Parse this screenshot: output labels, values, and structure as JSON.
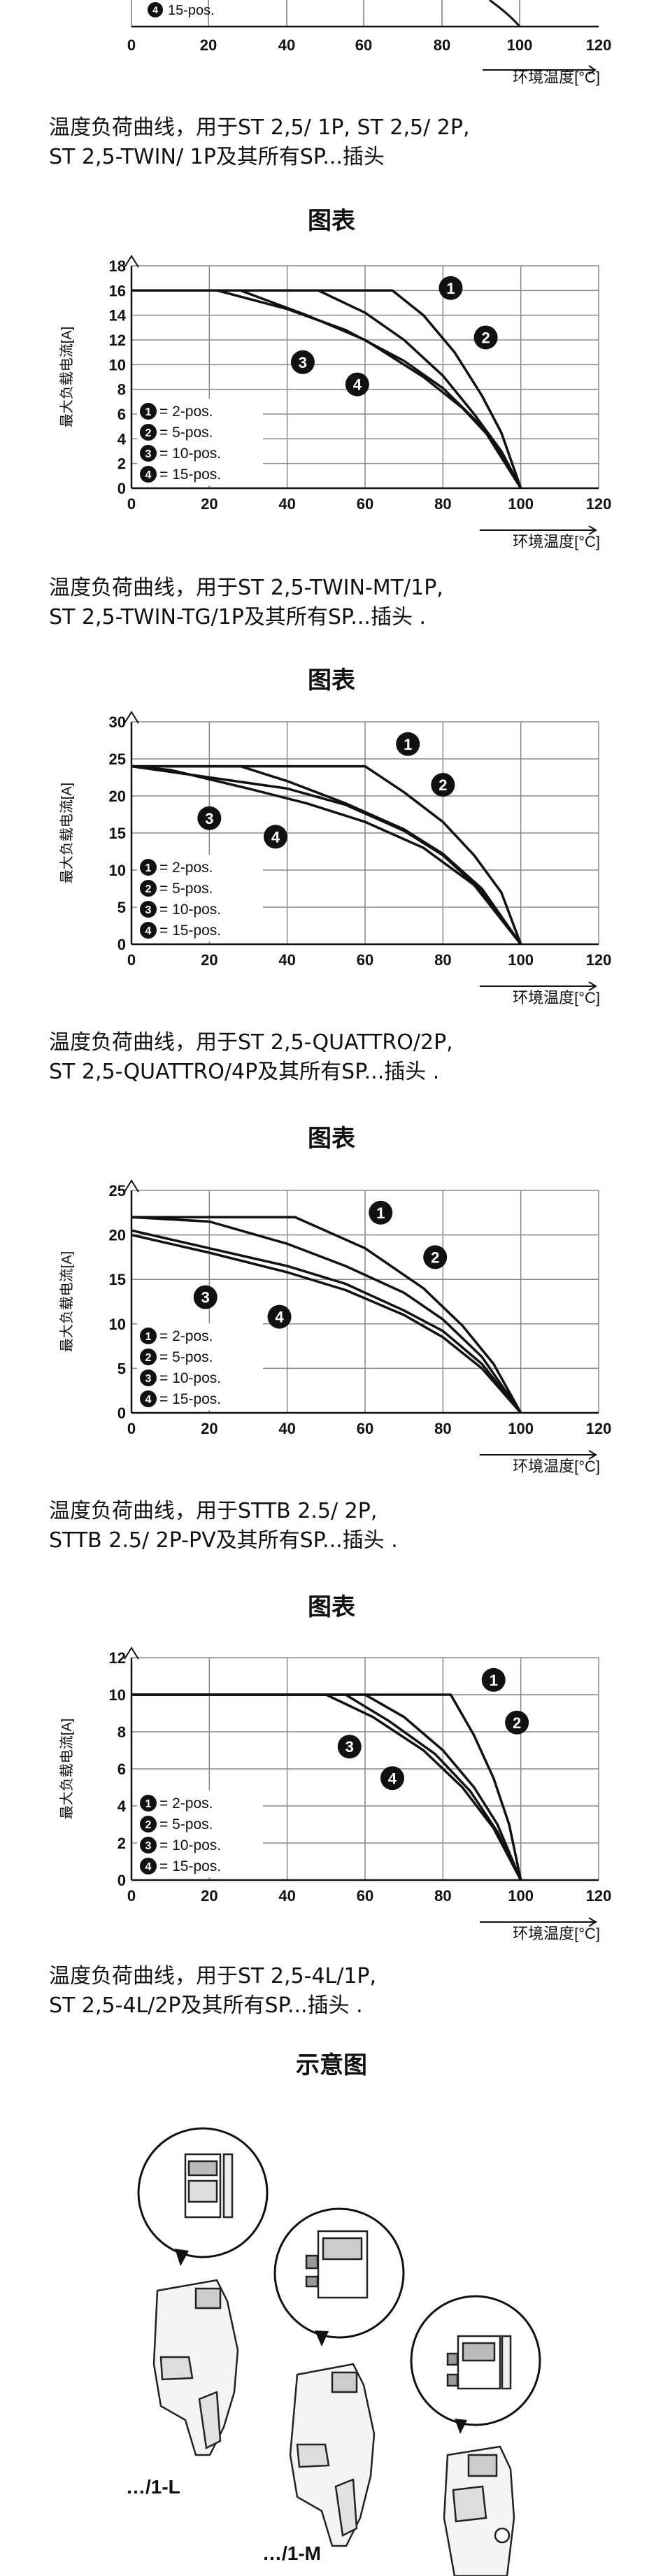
{
  "top_fragment": {
    "legend_item": "15-pos.",
    "legend_marker": "4",
    "x_ticks": [
      "0",
      "20",
      "40",
      "60",
      "80",
      "100",
      "120"
    ],
    "x_axis_label": "环境温度[°C]"
  },
  "captions": [
    [
      "温度负荷曲线，用于ST 2,5/ 1P, ST 2,5/ 2P,",
      "ST 2,5-TWIN/ 1P及其所有SP...插头"
    ],
    [
      "温度负荷曲线，用于ST 2,5-TWIN-MT/1P,",
      "ST 2,5-TWIN-TG/1P及其所有SP...插头 ."
    ],
    [
      "温度负荷曲线，用于ST 2,5-QUATTRO/2P,",
      "ST 2,5-QUATTRO/4P及其所有SP...插头 ."
    ],
    [
      "温度负荷曲线，用于STTB 2.5/ 2P,",
      "STTB 2.5/ 2P-PV及其所有SP...插头 ."
    ],
    [
      "温度负荷曲线，用于ST 2,5-4L/1P,",
      "ST 2,5-4L/2P及其所有SP...插头 ."
    ]
  ],
  "headings": [
    "图表",
    "图表",
    "图表",
    "图表",
    "示意图"
  ],
  "chart_data": [
    {
      "type": "line",
      "xlabel": "环境温度[°C]",
      "ylabel": "最大负载电流[A]",
      "xlim": [
        0,
        120
      ],
      "ylim": [
        0,
        18
      ],
      "xticks": [
        0,
        20,
        40,
        60,
        80,
        100,
        120
      ],
      "yticks": [
        0,
        2,
        4,
        6,
        8,
        10,
        12,
        14,
        16,
        18
      ],
      "grid": true,
      "legend_position": "bottom-left",
      "series": [
        {
          "name": "2-pos.",
          "marker": "1",
          "label_at": [
            82,
            16.2
          ],
          "points": [
            [
              0,
              16
            ],
            [
              67,
              16
            ],
            [
              75,
              14
            ],
            [
              83,
              11
            ],
            [
              90,
              7.5
            ],
            [
              95,
              4.5
            ],
            [
              100,
              0
            ]
          ]
        },
        {
          "name": "5-pos.",
          "marker": "2",
          "label_at": [
            91,
            12.2
          ],
          "points": [
            [
              0,
              16
            ],
            [
              48,
              16
            ],
            [
              60,
              14.2
            ],
            [
              70,
              12
            ],
            [
              80,
              9.1
            ],
            [
              88,
              6
            ],
            [
              95,
              3
            ],
            [
              100,
              0
            ]
          ]
        },
        {
          "name": "10-pos.",
          "marker": "3",
          "label_at": [
            44,
            10.2
          ],
          "points": [
            [
              0,
              16
            ],
            [
              22,
              16
            ],
            [
              40,
              14.5
            ],
            [
              55,
              12.8
            ],
            [
              70,
              10.3
            ],
            [
              80,
              8.1
            ],
            [
              90,
              5
            ],
            [
              100,
              0
            ]
          ]
        },
        {
          "name": "15-pos.",
          "marker": "4",
          "label_at": [
            58,
            8.4
          ],
          "points": [
            [
              0,
              16
            ],
            [
              28,
              16
            ],
            [
              45,
              14
            ],
            [
              60,
              12
            ],
            [
              75,
              9
            ],
            [
              85,
              6.5
            ],
            [
              93,
              3.8
            ],
            [
              100,
              0
            ]
          ]
        }
      ]
    },
    {
      "type": "line",
      "xlabel": "环境温度[°C]",
      "ylabel": "最大负载电流[A]",
      "xlim": [
        0,
        120
      ],
      "ylim": [
        0,
        30
      ],
      "xticks": [
        0,
        20,
        40,
        60,
        80,
        100,
        120
      ],
      "yticks": [
        0,
        5,
        10,
        15,
        20,
        25,
        30
      ],
      "grid": true,
      "legend_position": "bottom-left",
      "series": [
        {
          "name": "2-pos.",
          "marker": "1",
          "label_at": [
            71,
            27
          ],
          "points": [
            [
              0,
              24
            ],
            [
              60,
              24
            ],
            [
              70,
              20.5
            ],
            [
              80,
              16.5
            ],
            [
              88,
              12
            ],
            [
              95,
              7
            ],
            [
              100,
              0
            ]
          ]
        },
        {
          "name": "5-pos.",
          "marker": "2",
          "label_at": [
            80,
            21.5
          ],
          "points": [
            [
              0,
              24
            ],
            [
              28,
              24
            ],
            [
              40,
              22
            ],
            [
              55,
              19
            ],
            [
              70,
              15.5
            ],
            [
              80,
              12.2
            ],
            [
              90,
              7.5
            ],
            [
              100,
              0
            ]
          ]
        },
        {
          "name": "10-pos.",
          "marker": "3",
          "label_at": [
            20,
            17
          ],
          "points": [
            [
              0,
              24
            ],
            [
              40,
              21
            ],
            [
              55,
              18.8
            ],
            [
              70,
              15.3
            ],
            [
              80,
              12
            ],
            [
              90,
              7.2
            ],
            [
              100,
              0
            ]
          ]
        },
        {
          "name": "15-pos.",
          "marker": "4",
          "label_at": [
            37,
            14.5
          ],
          "points": [
            [
              0,
              24
            ],
            [
              10,
              23.5
            ],
            [
              30,
              21
            ],
            [
              45,
              19
            ],
            [
              60,
              16.5
            ],
            [
              75,
              13
            ],
            [
              88,
              8
            ],
            [
              100,
              0
            ]
          ]
        }
      ]
    },
    {
      "type": "line",
      "xlabel": "环境温度[°C]",
      "ylabel": "最大负载电流[A]",
      "xlim": [
        0,
        120
      ],
      "ylim": [
        0,
        25
      ],
      "xticks": [
        0,
        20,
        40,
        60,
        80,
        100,
        120
      ],
      "yticks": [
        0,
        5,
        10,
        15,
        20,
        25
      ],
      "grid": true,
      "legend_position": "bottom-left",
      "series": [
        {
          "name": "2-pos.",
          "marker": "1",
          "label_at": [
            64,
            22.5
          ],
          "points": [
            [
              0,
              22
            ],
            [
              42,
              22
            ],
            [
              60,
              18.5
            ],
            [
              75,
              14
            ],
            [
              85,
              9.8
            ],
            [
              93,
              5.5
            ],
            [
              100,
              0
            ]
          ]
        },
        {
          "name": "5-pos.",
          "marker": "2",
          "label_at": [
            78,
            17.5
          ],
          "points": [
            [
              0,
              22
            ],
            [
              20,
              21.5
            ],
            [
              40,
              19
            ],
            [
              55,
              16.5
            ],
            [
              70,
              13.5
            ],
            [
              80,
              10.5
            ],
            [
              90,
              6.3
            ],
            [
              100,
              0
            ]
          ]
        },
        {
          "name": "10-pos.",
          "marker": "3",
          "label_at": [
            19,
            13
          ],
          "points": [
            [
              0,
              20.5
            ],
            [
              20,
              18.5
            ],
            [
              40,
              16.5
            ],
            [
              55,
              14.5
            ],
            [
              70,
              11.5
            ],
            [
              80,
              9.2
            ],
            [
              90,
              5.5
            ],
            [
              100,
              0
            ]
          ]
        },
        {
          "name": "15-pos.",
          "marker": "4",
          "label_at": [
            38,
            10.8
          ],
          "points": [
            [
              0,
              20
            ],
            [
              20,
              18
            ],
            [
              40,
              15.8
            ],
            [
              55,
              13.8
            ],
            [
              70,
              11
            ],
            [
              80,
              8.5
            ],
            [
              90,
              5
            ],
            [
              100,
              0
            ]
          ]
        }
      ]
    },
    {
      "type": "line",
      "xlabel": "环境温度[°C]",
      "ylabel": "最大负载电流[A]",
      "xlim": [
        0,
        120
      ],
      "ylim": [
        0,
        12
      ],
      "xticks": [
        0,
        20,
        40,
        60,
        80,
        100,
        120
      ],
      "yticks": [
        0,
        2,
        4,
        6,
        8,
        10,
        12
      ],
      "grid": true,
      "legend_position": "bottom-left",
      "series": [
        {
          "name": "2-pos.",
          "marker": "1",
          "label_at": [
            93,
            10.8
          ],
          "points": [
            [
              0,
              10
            ],
            [
              82,
              10
            ],
            [
              88,
              7.8
            ],
            [
              93,
              5.5
            ],
            [
              97,
              3
            ],
            [
              100,
              0
            ]
          ]
        },
        {
          "name": "5-pos.",
          "marker": "2",
          "label_at": [
            99,
            8.5
          ],
          "points": [
            [
              0,
              10
            ],
            [
              60,
              10
            ],
            [
              70,
              8.8
            ],
            [
              80,
              7
            ],
            [
              88,
              5
            ],
            [
              94,
              3
            ],
            [
              100,
              0
            ]
          ]
        },
        {
          "name": "10-pos.",
          "marker": "3",
          "label_at": [
            56,
            7.2
          ],
          "points": [
            [
              0,
              10
            ],
            [
              50,
              10
            ],
            [
              62,
              8.8
            ],
            [
              75,
              7
            ],
            [
              85,
              5
            ],
            [
              93,
              2.8
            ],
            [
              100,
              0
            ]
          ]
        },
        {
          "name": "15-pos.",
          "marker": "4",
          "label_at": [
            67,
            5.5
          ],
          "points": [
            [
              0,
              10
            ],
            [
              55,
              10
            ],
            [
              66,
              8.6
            ],
            [
              78,
              6.8
            ],
            [
              87,
              4.8
            ],
            [
              94,
              2.6
            ],
            [
              100,
              0
            ]
          ]
        }
      ]
    }
  ],
  "diagram": {
    "labels": [
      "…/1-L",
      "…/1-M"
    ]
  }
}
